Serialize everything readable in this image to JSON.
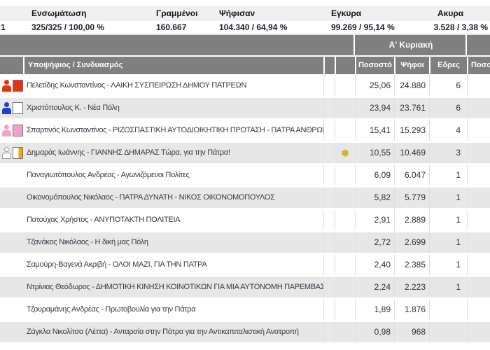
{
  "summary": {
    "row_number": "1",
    "columns": [
      {
        "label": "Ενσωμάτωση",
        "value": "325/325 / 100,00 %"
      },
      {
        "label": "Γραμμένοι",
        "value": "160.667"
      },
      {
        "label": "Ψήφισαν",
        "value": "104.340 / 64,94 %"
      },
      {
        "label": "Εγκυρα",
        "value": "99.269 / 95,14 %"
      },
      {
        "label": "Ακυρα",
        "value": "3.528 / 3,38 %"
      }
    ]
  },
  "table": {
    "round_header": "Α' Κυριακή",
    "columns": {
      "candidate": "Υποψήφιος / Συνδυασμός",
      "percent": "Ποσοστό",
      "votes": "Ψήφοι",
      "seats": "Εδρες",
      "percent2": "Ποσοστό"
    },
    "rows": [
      {
        "name": "Πελετίδης Κωνσταντίνος - ΛΑΙΚΗ ΣΥΣΠΕΙΡΩΣΗ ΔΗΜΟΥ ΠΑΤΡΕΩΝ",
        "percent": "25,06",
        "votes": "24.880",
        "seats": "6",
        "star": false,
        "icon": {
          "person": "#e5330e",
          "person_outline": false,
          "square": "#e5330e",
          "square_stripe": null
        }
      },
      {
        "name": "Χριστόπουλος Κ. - Νέα Πόλη",
        "percent": "23,94",
        "votes": "23.761",
        "seats": "6",
        "star": false,
        "icon": {
          "person": "#2041cc",
          "person_outline": false,
          "square": "#ffffff",
          "square_stripe": null
        }
      },
      {
        "name": "Σπαρτινός Κωνσταντίνος - ΡΙΖΟΣΠΑΣΤΙΚΗ ΑΥΤΟΔΙΟΙΚΗΤΙΚΗ ΠΡΟΤΑΣΗ - ΠΑΤΡΑ ΑΝΘΡΩΠΙΝΗ ...",
        "percent": "15,41",
        "votes": "15.293",
        "seats": "4",
        "star": false,
        "icon": {
          "person": "#f4a0cc",
          "person_outline": false,
          "square": "#f4a0cc",
          "square_stripe": null
        }
      },
      {
        "name": "Δημαράς Ιωάννης - ΓΙΑΝΝΗΣ ΔΗΜΑΡΑΣ Τώρα, για την Πάτρα!",
        "percent": "10,55",
        "votes": "10.469",
        "seats": "3",
        "star": true,
        "icon": {
          "person": "#ffffff",
          "person_outline": true,
          "square": "#ffffff",
          "square_stripe": "#f5a019"
        }
      },
      {
        "name": "Παναγιωτόπουλος Ανδρέας - Αγωνιζόμενοι Πολίτες",
        "percent": "6,09",
        "votes": "6.047",
        "seats": "1",
        "star": false,
        "icon": null
      },
      {
        "name": "Οικονομόπουλος Νικόλαος - ΠΑΤΡΑ ΔΥΝΑΤΗ - ΝΙΚΟΣ ΟΙΚΟΝΟΜΟΠΟΥΛΟΣ",
        "percent": "5,82",
        "votes": "5.779",
        "seats": "1",
        "star": false,
        "icon": null
      },
      {
        "name": "Πατούχας Χρήστος - ΑΝΥΠΟΤΑΚΤΗ ΠΟΛΙΤΕΙΑ",
        "percent": "2,91",
        "votes": "2.889",
        "seats": "1",
        "star": false,
        "icon": null
      },
      {
        "name": "Τζανάκος Νικόλαος - Η δική μας Πόλη",
        "percent": "2,72",
        "votes": "2.699",
        "seats": "1",
        "star": false,
        "icon": null
      },
      {
        "name": "Σαμούρη-Βαγενά Ακριβή - ΟΛΟΙ ΜΑΖΙ, ΓΙΑ ΤΗΝ ΠΑΤΡΑ",
        "percent": "2,40",
        "votes": "2.385",
        "seats": "1",
        "star": false,
        "icon": null
      },
      {
        "name": "Ντρίνιας Θεόδωρος - ΔΗΜΟΤΙΚΗ ΚΙΝΗΣΗ ΚΟΙΝΟΤΙΚΩΝ ΓΙΑ ΜΙΑ ΑΥΤΟΝΟΜΗ ΠΑΡΕΜΒΑΣΗ ΣΤ...",
        "percent": "2,24",
        "votes": "2.223",
        "seats": "1",
        "star": false,
        "icon": null
      },
      {
        "name": "Τζουραμάνης Ανδρέας - Πρωτοβουλία για την Πάτρα",
        "percent": "1,89",
        "votes": "1.876",
        "seats": "",
        "star": false,
        "icon": null
      },
      {
        "name": "Ζάγκλα Νικολίτσα (Λέττα) - Ανταρσία στην Πάτρα για την Αντικαπιταλιστική Ανατροπή",
        "percent": "0,98",
        "votes": "968",
        "seats": "",
        "star": false,
        "icon": null
      }
    ]
  },
  "icons": {
    "winner_star": "✱"
  },
  "colors": {
    "band_gray": "#7f7f7f",
    "row_alt_gray": "#e7e7e7",
    "summary_bar_gray": "#f0f0f0",
    "star_gold": "#d8b80e",
    "party_red": "#e5330e",
    "party_blue": "#2041cc",
    "party_pink": "#f4a0cc",
    "party_orange": "#f5a019"
  }
}
